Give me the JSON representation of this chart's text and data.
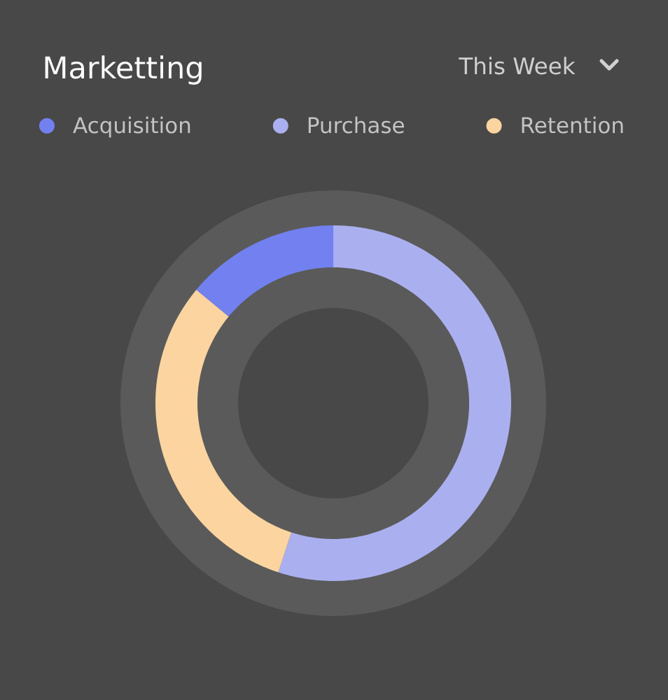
{
  "chart_data": {
    "type": "donut",
    "title": "Marketting",
    "annotations": [
      "This Week"
    ],
    "categories": [
      "Acquisition",
      "Purchase",
      "Retention"
    ],
    "values": [
      14,
      55,
      31
    ],
    "colors": [
      "#7281ef",
      "#aab0ef",
      "#fcd49f"
    ],
    "legend": "top"
  }
}
